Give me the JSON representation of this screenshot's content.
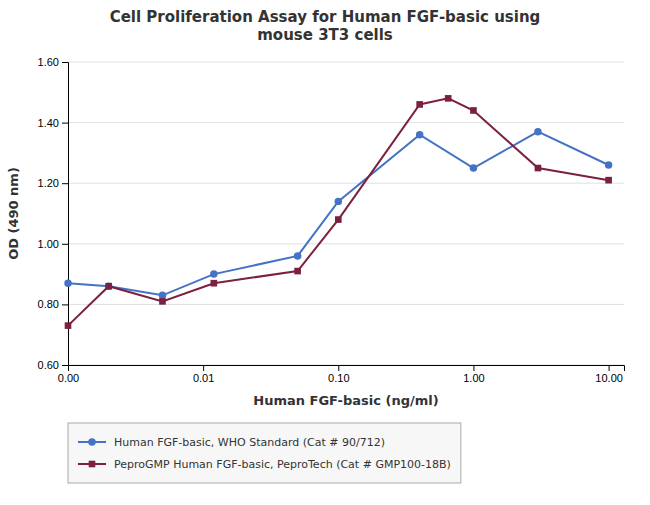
{
  "chart_data": {
    "type": "line",
    "title": "Cell Proliferation Assay for Human FGF-basic using\nmouse 3T3 cells",
    "x_label": "Human FGF-basic (ng/ml)",
    "y_label": "OD (490 nm)",
    "log": "x",
    "xlim": [
      0.001,
      13
    ],
    "xticks": [
      {
        "value": 0.001,
        "label": "0.00"
      },
      0.01,
      {
        "value": 0.1,
        "label": "0.10"
      },
      {
        "value": 1.0,
        "label": "1.00"
      },
      {
        "value": 10.0,
        "label": "10.00"
      }
    ],
    "ylim": [
      0.6,
      1.6
    ],
    "yticks": [
      {
        "value": 0.6,
        "label": "0.60"
      },
      {
        "value": 0.8,
        "label": "0.80"
      },
      {
        "value": 1.0,
        "label": "1.00"
      },
      {
        "value": 1.2,
        "label": "1.20"
      },
      {
        "value": 1.4,
        "label": "1.40"
      },
      {
        "value": 1.6,
        "label": "1.60"
      }
    ],
    "grid": true,
    "legend": "bottom",
    "series": [
      {
        "name": "Human FGF-basic, WHO Standard (Cat # 90/712)",
        "color": "#4472C4",
        "marker": "circle",
        "x": [
          0.001,
          0.002,
          0.005,
          0.012,
          0.05,
          0.1,
          0.4,
          1.0,
          3.0,
          10.0
        ],
        "values": [
          0.87,
          0.86,
          0.83,
          0.9,
          0.96,
          1.14,
          1.36,
          1.25,
          1.37,
          1.26
        ]
      },
      {
        "name": "PeproGMP Human FGF-basic, PeproTech (Cat # GMP100-18B)",
        "color": "#7B2040",
        "marker": "square",
        "x": [
          0.001,
          0.002,
          0.005,
          0.012,
          0.05,
          0.1,
          0.4,
          0.65,
          1.0,
          3.0,
          10.0
        ],
        "values": [
          0.73,
          0.86,
          0.81,
          0.87,
          0.91,
          1.08,
          1.46,
          1.48,
          1.44,
          1.25,
          1.21
        ]
      }
    ]
  }
}
